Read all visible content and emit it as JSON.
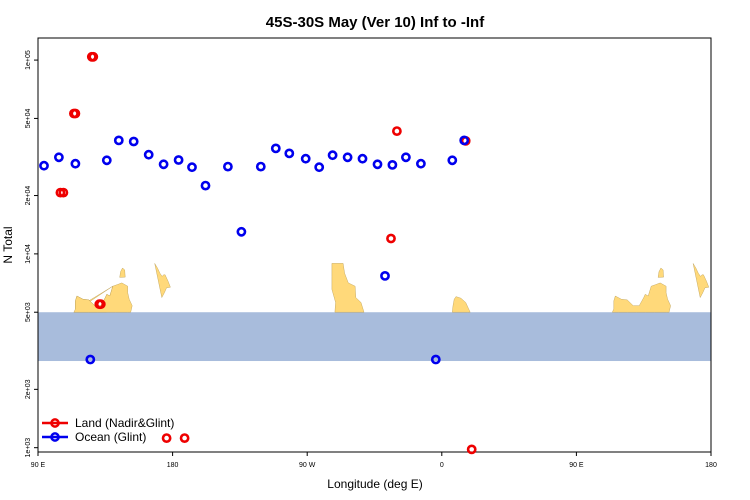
{
  "chart_data": {
    "type": "scatter",
    "title": "45S-30S May (Ver 10)   Inf to -Inf",
    "xlabel": "Longitude (deg E)",
    "ylabel": "N Total",
    "x_scale": "longitude (90 E to 180 E, wrapping through 180 and 0)",
    "y_scale": "log",
    "xlim": [
      "90 E",
      "180 E"
    ],
    "ylim": [
      950,
      130000
    ],
    "x_ticks": [
      "90 E",
      "180",
      "90 W",
      "0",
      "90 E",
      "180"
    ],
    "y_ticks": [
      "1e+03",
      "2e+03",
      "5e+03",
      "1e+04",
      "2e+04",
      "5e+04",
      "1e+05"
    ],
    "legend_position": "bottom-left",
    "map_band": {
      "ocean_color": "#a8bcdc",
      "land_color": "#ffd97a",
      "y_range": [
        2800,
        5000
      ]
    },
    "series": [
      {
        "name": "Land (Nadir&Glint)",
        "color": "#ee0000",
        "points": [
          {
            "lon": "107 E",
            "value": 20700
          },
          {
            "lon": "115 E",
            "value": 53000
          },
          {
            "lon": "127 E",
            "value": 104000
          },
          {
            "lon": "132 E",
            "value": 5500
          },
          {
            "lon": "172 W",
            "value": 1120
          },
          {
            "lon": "30 W",
            "value": 43000
          },
          {
            "lon": "34 W",
            "value": 12000
          },
          {
            "lon": "16 E",
            "value": 38300
          },
          {
            "lon": "20 E",
            "value": 980
          },
          {
            "lon": "105 E",
            "value": 20700
          },
          {
            "lon": "114 E",
            "value": 53000
          },
          {
            "lon": "126 E",
            "value": 104000
          },
          {
            "lon": "131 E",
            "value": 5500
          },
          {
            "lon": "176 E",
            "value": 1120
          }
        ]
      },
      {
        "name": "Ocean (Glint)",
        "color": "#0000ee",
        "points": [
          {
            "lon": "94 E",
            "value": 28500
          },
          {
            "lon": "104 E",
            "value": 31500
          },
          {
            "lon": "115 E",
            "value": 29200
          },
          {
            "lon": "125 E",
            "value": 2850
          },
          {
            "lon": "136 E",
            "value": 30400
          },
          {
            "lon": "144 E",
            "value": 38500
          },
          {
            "lon": "154 E",
            "value": 38000
          },
          {
            "lon": "164 E",
            "value": 32500
          },
          {
            "lon": "174 E",
            "value": 29000
          },
          {
            "lon": "176 W",
            "value": 30500
          },
          {
            "lon": "167 W",
            "value": 28000
          },
          {
            "lon": "158 W",
            "value": 22500
          },
          {
            "lon": "143 W",
            "value": 28200
          },
          {
            "lon": "38 W",
            "value": 7700
          },
          {
            "lon": "134 W",
            "value": 13000
          },
          {
            "lon": "121 W",
            "value": 28200
          },
          {
            "lon": "111 W",
            "value": 35000
          },
          {
            "lon": "102 W",
            "value": 33000
          },
          {
            "lon": "91 W",
            "value": 31000
          },
          {
            "lon": "82 W",
            "value": 28000
          },
          {
            "lon": "73 W",
            "value": 32300
          },
          {
            "lon": "63 W",
            "value": 31500
          },
          {
            "lon": "53 W",
            "value": 31000
          },
          {
            "lon": "43 W",
            "value": 29000
          },
          {
            "lon": "33 W",
            "value": 28800
          },
          {
            "lon": "24 W",
            "value": 31500
          },
          {
            "lon": "14 W",
            "value": 29200
          },
          {
            "lon": "4 W",
            "value": 2850
          },
          {
            "lon": "7 E",
            "value": 30400
          },
          {
            "lon": "15 E",
            "value": 38500
          }
        ]
      }
    ]
  }
}
